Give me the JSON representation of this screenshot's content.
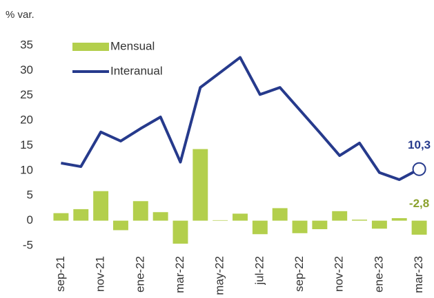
{
  "chart_data": {
    "type": "combo",
    "y_label": "% var.",
    "categories": [
      "sep-21",
      null,
      "nov-21",
      null,
      "ene-22",
      null,
      "mar-22",
      null,
      "may-22",
      null,
      "jul-22",
      null,
      "sep-22",
      null,
      "nov-22",
      null,
      "ene-23",
      null,
      "mar-23"
    ],
    "series": [
      {
        "name": "Mensual",
        "type": "bar",
        "color": "#b3cf4c",
        "values": [
          1.5,
          2.3,
          5.9,
          -1.9,
          3.9,
          1.7,
          -4.6,
          14.3,
          0.1,
          1.4,
          -2.7,
          2.5,
          -2.5,
          -1.7,
          1.9,
          0.2,
          -1.6,
          0.5,
          -2.8
        ],
        "value_labels": [
          null,
          null,
          null,
          null,
          null,
          null,
          null,
          null,
          null,
          null,
          null,
          null,
          null,
          null,
          null,
          null,
          null,
          null,
          "-2,8"
        ],
        "label_color": "#8aa12c"
      },
      {
        "name": "Interanual",
        "type": "line",
        "color": "#263a8c",
        "values": [
          11.5,
          10.8,
          17.7,
          15.9,
          18.4,
          20.7,
          11.7,
          26.6,
          29.6,
          32.6,
          25.2,
          26.6,
          22.1,
          17.6,
          13.0,
          15.5,
          9.6,
          8.2,
          10.3
        ],
        "value_labels": [
          null,
          null,
          null,
          null,
          null,
          null,
          null,
          null,
          null,
          null,
          null,
          null,
          null,
          null,
          null,
          null,
          null,
          null,
          "10,3"
        ],
        "label_color": "#263a8c"
      }
    ],
    "ylim": [
      -5,
      35
    ],
    "yticks": [
      -5,
      0,
      5,
      10,
      15,
      20,
      25,
      30,
      35
    ],
    "grid": false,
    "legend": "upper left"
  }
}
